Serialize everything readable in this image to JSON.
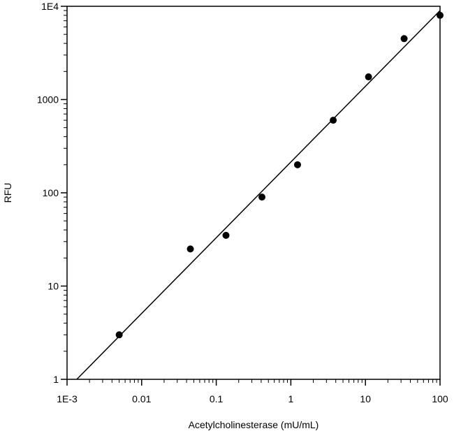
{
  "chart_data": {
    "type": "scatter",
    "title": "",
    "xlabel": "Acetylcholinesterase (mU/mL)",
    "ylabel": "RFU",
    "x_scale": "log",
    "y_scale": "log",
    "xlim": [
      0.001,
      100
    ],
    "ylim": [
      1,
      10000
    ],
    "x_ticks": [
      {
        "value": 0.001,
        "label": "1E-3"
      },
      {
        "value": 0.01,
        "label": "0.01"
      },
      {
        "value": 0.1,
        "label": "0.1"
      },
      {
        "value": 1,
        "label": "1"
      },
      {
        "value": 10,
        "label": "10"
      },
      {
        "value": 100,
        "label": "100"
      }
    ],
    "y_ticks": [
      {
        "value": 1,
        "label": "1"
      },
      {
        "value": 10,
        "label": "10"
      },
      {
        "value": 100,
        "label": "100"
      },
      {
        "value": 1000,
        "label": "1000"
      },
      {
        "value": 10000,
        "label": "1E4"
      }
    ],
    "grid": false,
    "legend": "none",
    "marker_color": "#000000",
    "line_color": "#000000",
    "points": [
      {
        "x": 0.005,
        "y": 3
      },
      {
        "x": 0.045,
        "y": 25
      },
      {
        "x": 0.135,
        "y": 35
      },
      {
        "x": 0.41,
        "y": 90
      },
      {
        "x": 1.23,
        "y": 200
      },
      {
        "x": 3.7,
        "y": 600
      },
      {
        "x": 11,
        "y": 1750
      },
      {
        "x": 33,
        "y": 4500
      },
      {
        "x": 100,
        "y": 8000
      }
    ],
    "fit_line": [
      {
        "x": 0.00135,
        "y": 1
      },
      {
        "x": 100,
        "y": 9000
      }
    ]
  }
}
